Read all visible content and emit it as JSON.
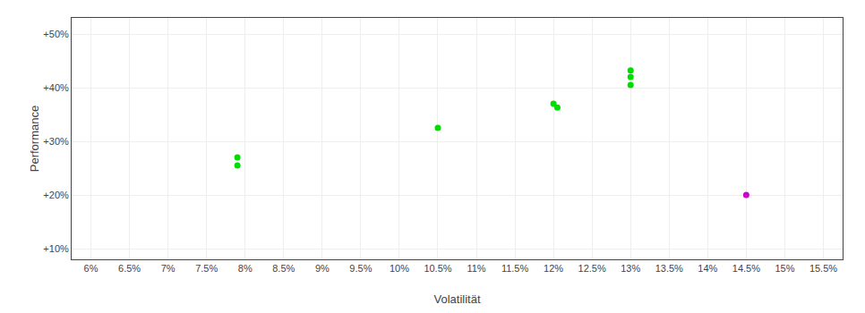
{
  "chart_data": {
    "type": "scatter",
    "xlabel": "Volatilität",
    "ylabel": "Performance",
    "series": [
      {
        "color": "#00dd00",
        "marker": "circle",
        "x": [
          7.9,
          7.9,
          10.5,
          12.0,
          12.05,
          13.0,
          13.0,
          13.0
        ],
        "y": [
          27.0,
          25.5,
          32.5,
          37.0,
          36.3,
          43.2,
          42.0,
          40.5
        ]
      },
      {
        "color": "#cc00cc",
        "marker": "circle",
        "x": [
          14.5
        ],
        "y": [
          20.0
        ]
      }
    ],
    "xlim": [
      5.75,
      15.75
    ],
    "xticks": [
      {
        "value": 6.0,
        "label": "6%"
      },
      {
        "value": 6.5,
        "label": "6.5%"
      },
      {
        "value": 7.0,
        "label": "7%"
      },
      {
        "value": 7.5,
        "label": "7.5%"
      },
      {
        "value": 8.0,
        "label": "8%"
      },
      {
        "value": 8.5,
        "label": "8.5%"
      },
      {
        "value": 9.0,
        "label": "9%"
      },
      {
        "value": 9.5,
        "label": "9.5%"
      },
      {
        "value": 10.0,
        "label": "10%"
      },
      {
        "value": 10.5,
        "label": "10.5%"
      },
      {
        "value": 11.0,
        "label": "11%"
      },
      {
        "value": 11.5,
        "label": "11.5%"
      },
      {
        "value": 12.0,
        "label": "12%"
      },
      {
        "value": 12.5,
        "label": "12.5%"
      },
      {
        "value": 13.0,
        "label": "13%"
      },
      {
        "value": 13.5,
        "label": "13.5%"
      },
      {
        "value": 14.0,
        "label": "14%"
      },
      {
        "value": 14.5,
        "label": "14.5%"
      },
      {
        "value": 15.0,
        "label": "15%"
      },
      {
        "value": 15.5,
        "label": "15.5%"
      }
    ],
    "ylim": [
      8.0,
      53.0
    ],
    "yticks": [
      {
        "value": 10,
        "label": "+10%"
      },
      {
        "value": 20,
        "label": "+20%"
      },
      {
        "value": 30,
        "label": "+30%"
      },
      {
        "value": 40,
        "label": "+40%"
      },
      {
        "value": 50,
        "label": "+50%"
      }
    ],
    "grid": true
  }
}
